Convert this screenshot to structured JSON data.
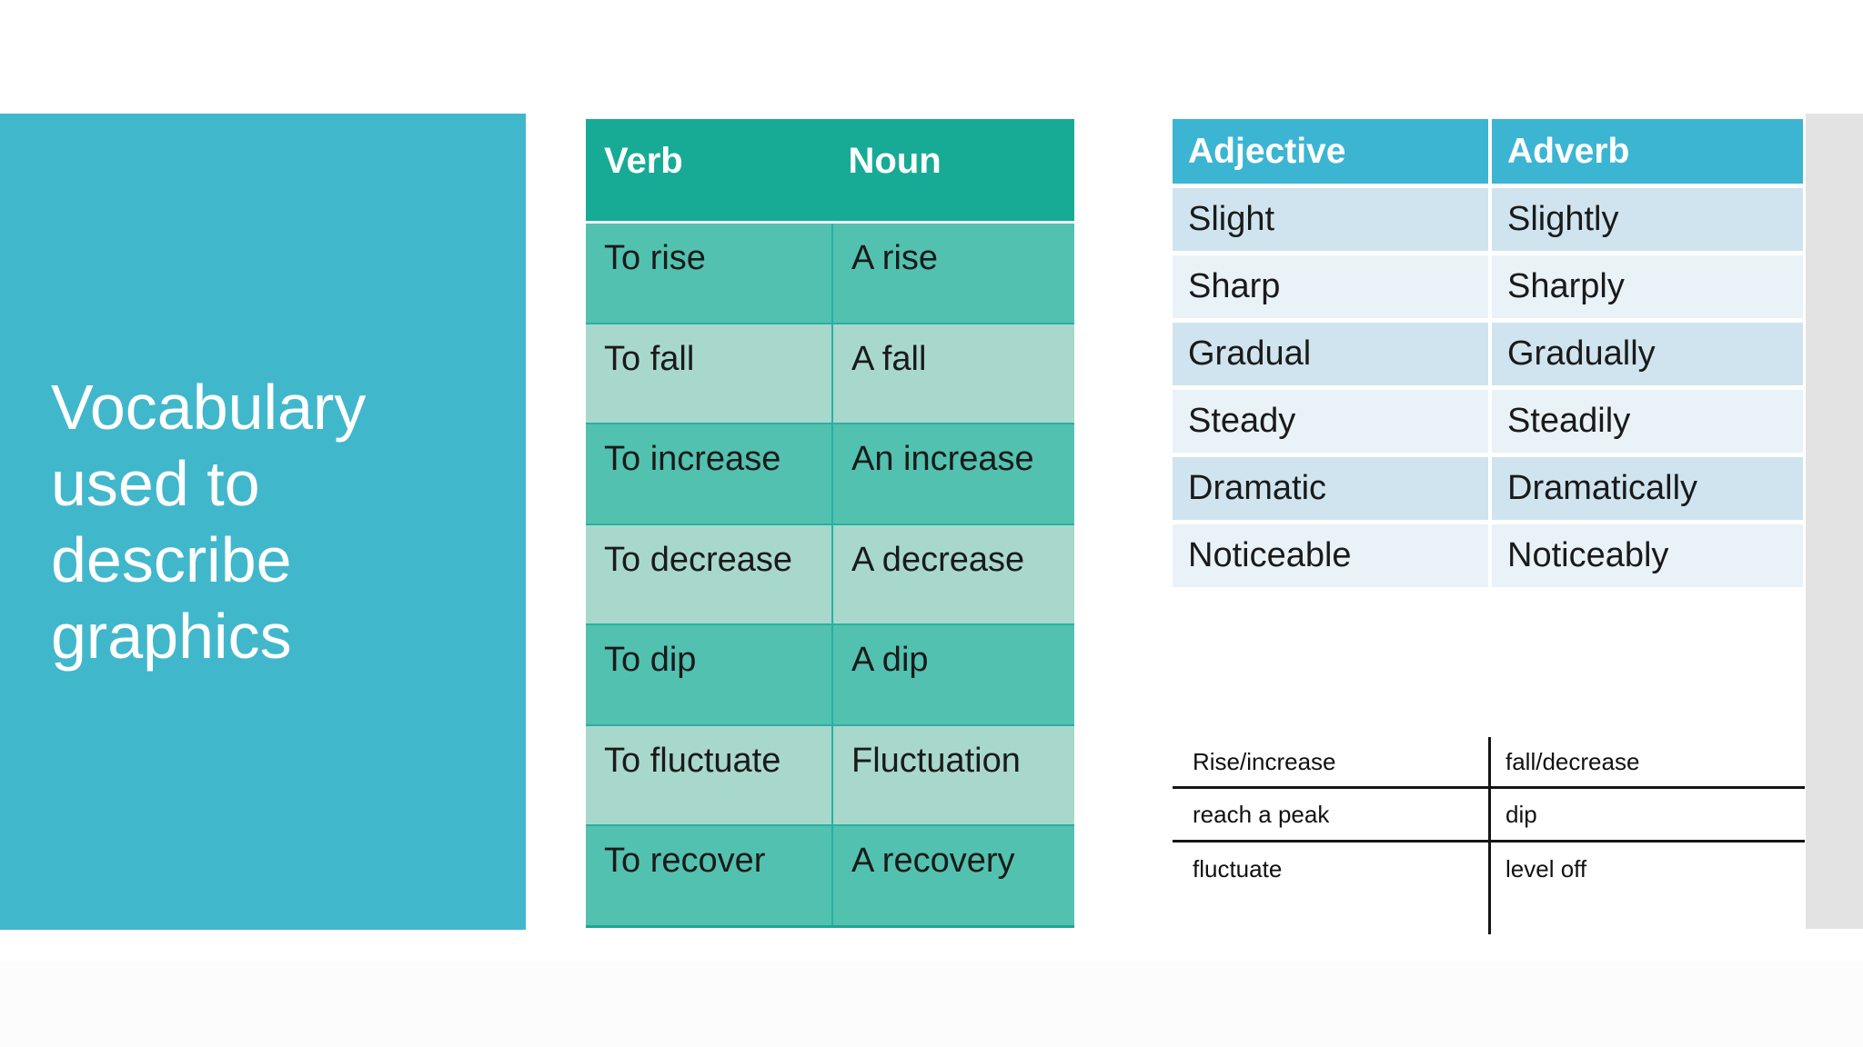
{
  "slide": {
    "title": {
      "text": "Vocabulary used to describe graphics",
      "lines": [
        "Vocabulary",
        "used to",
        "describe",
        "graphics"
      ]
    }
  },
  "verb_noun_table": {
    "headers": [
      "Verb",
      "Noun"
    ],
    "rows": [
      [
        "To rise",
        "A rise"
      ],
      [
        "To fall",
        "A fall"
      ],
      [
        "To increase",
        "An increase"
      ],
      [
        "To decrease",
        "A decrease"
      ],
      [
        "To dip",
        "A dip"
      ],
      [
        "To fluctuate",
        "Fluctuation"
      ],
      [
        "To recover",
        "A recovery"
      ]
    ]
  },
  "adjective_adverb_table": {
    "headers": [
      "Adjective",
      "Adverb"
    ],
    "rows": [
      [
        "Slight",
        "Slightly"
      ],
      [
        "Sharp",
        "Sharply"
      ],
      [
        "Gradual",
        "Gradually"
      ],
      [
        "Steady",
        "Steadily"
      ],
      [
        "Dramatic",
        "Dramatically"
      ],
      [
        "Noticeable",
        "Noticeably"
      ]
    ]
  },
  "phrase_pairs_table": {
    "rows": [
      [
        "Rise/increase",
        "fall/decrease"
      ],
      [
        "reach a peak",
        "dip"
      ],
      [
        "fluctuate",
        "level off"
      ]
    ]
  },
  "colors": {
    "title_panel": "#41b7cc",
    "verb_table_header": "#17ab96",
    "verb_row_medium": "#52c1b0",
    "verb_row_light": "#a8d8cc",
    "verb_grid_line": "#29b0a0",
    "adj_table_header": "#3cb5d3",
    "adj_row_blue": "#cfe4ee",
    "adj_row_pale": "#e9f2f6",
    "side_gutter": "#e3e3e3",
    "text_dark": "#1a1a1a",
    "text_white": "#ffffff"
  }
}
